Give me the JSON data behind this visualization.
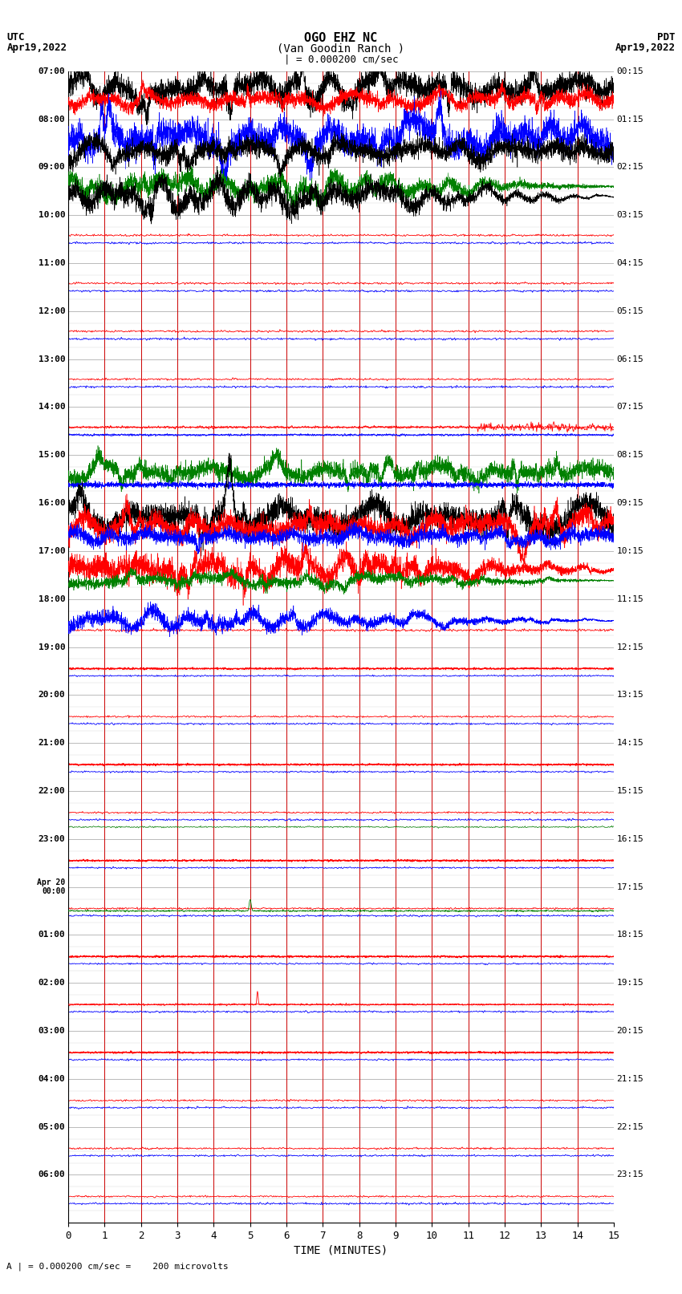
{
  "title_line1": "OGO EHZ NC",
  "title_line2": "(Van Goodin Ranch )",
  "title_line3": "| = 0.000200 cm/sec",
  "xlabel": "TIME (MINUTES)",
  "footer": "A | = 0.000200 cm/sec =    200 microvolts",
  "utc_labels": [
    "07:00",
    "08:00",
    "09:00",
    "10:00",
    "11:00",
    "12:00",
    "13:00",
    "14:00",
    "15:00",
    "16:00",
    "17:00",
    "18:00",
    "19:00",
    "20:00",
    "21:00",
    "22:00",
    "23:00",
    "Apr 20\n00:00",
    "01:00",
    "02:00",
    "03:00",
    "04:00",
    "05:00",
    "06:00"
  ],
  "pdt_labels": [
    "00:15",
    "01:15",
    "02:15",
    "03:15",
    "04:15",
    "05:15",
    "06:15",
    "07:15",
    "08:15",
    "09:15",
    "10:15",
    "11:15",
    "12:15",
    "13:15",
    "14:15",
    "15:15",
    "16:15",
    "17:15",
    "18:15",
    "19:15",
    "20:15",
    "21:15",
    "22:15",
    "23:15"
  ],
  "colors": {
    "red": "#ff0000",
    "blue": "#0000ff",
    "green": "#008000",
    "black": "#000000",
    "vgrid": "#cc0000",
    "hgrid": "#888888",
    "background": "#ffffff"
  },
  "n_rows": 24,
  "xlim": [
    0,
    15
  ],
  "xticks": [
    0,
    1,
    2,
    3,
    4,
    5,
    6,
    7,
    8,
    9,
    10,
    11,
    12,
    13,
    14,
    15
  ]
}
